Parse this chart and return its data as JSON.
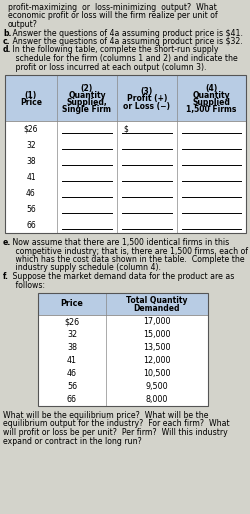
{
  "bg_color": "#d3d3cb",
  "table1_header_bg": "#b8cce4",
  "table1_data_bg": "#ffffff",
  "table2_header_bg": "#b8cce4",
  "table2_data_bg": "#ffffff",
  "intro_lines": [
    "profit-maximizing  or  loss-minimizing  output?  What",
    "economic profit or loss will the firm realize per unit of",
    "output?"
  ],
  "b_line_bold": "b.",
  "b_line_rest": " Answer the questions of 4a assuming product price is $41.",
  "c_line_bold": "c.",
  "c_line_rest": " Answer the questions of 4a assuming product price is $32.",
  "d_line_bold": "d.",
  "d_line_rest": " In the following table, complete the short-run supply",
  "d_line2": "   schedule for the firm (columns 1 and 2) and indicate the",
  "d_line3": "   profit or loss incurred at each output (column 3).",
  "table1_col1_header": [
    "(1)",
    "Price"
  ],
  "table1_col2_header": [
    "(2)",
    "Quantity",
    "Supplied,",
    "Single Firm"
  ],
  "table1_col3_header": [
    "(3)",
    "Profit (+)",
    "or Loss (−)"
  ],
  "table1_col4_header": [
    "(4)",
    "Quantity",
    "Supplied",
    "1,500 Firms"
  ],
  "table1_prices": [
    "$26",
    "32",
    "38",
    "41",
    "46",
    "56",
    "66"
  ],
  "e_line_bold": "e.",
  "e_line_rest": " Now assume that there are 1,500 identical firms in this",
  "e_line2": "   competitive industry; that is, there are 1,500 firms, each of",
  "e_line3": "   which has the cost data shown in the table.  Complete the",
  "e_line4": "   industry supply schedule (column 4).",
  "f_line_bold": "f.",
  "f_line_rest": " Suppose the market demand data for the product are as",
  "f_line2": "   follows:",
  "table2_col1_header": "Price",
  "table2_col2_header": [
    "Total Quantity",
    "Demanded"
  ],
  "table2_prices": [
    "$26",
    "32",
    "38",
    "41",
    "46",
    "56",
    "66"
  ],
  "table2_quantities": [
    "17,000",
    "15,000",
    "13,500",
    "12,000",
    "10,500",
    "9,500",
    "8,000"
  ],
  "final_line1": "What will be the equilibrium price?  What will be the",
  "final_line2": "equilibrium output for the industry?  For each firm?  What",
  "final_line3": "will profit or loss be per unit?  Per firm?  Will this industry",
  "final_line4": "expand or contract in the long run?"
}
